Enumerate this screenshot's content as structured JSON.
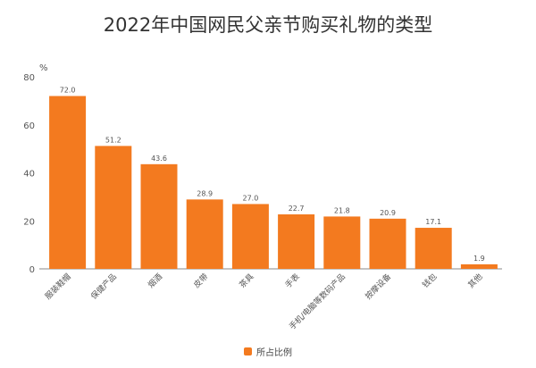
{
  "chart_data": {
    "type": "bar",
    "title": "2022年中国网民父亲节购买礼物的类型",
    "unit": "%",
    "categories": [
      "服装鞋帽",
      "保健产品",
      "烟酒",
      "皮带",
      "茶具",
      "手表",
      "手机/电脑等数码产品",
      "按摩设备",
      "钱包",
      "其他"
    ],
    "series": [
      {
        "name": "所占比例",
        "values": [
          72.0,
          51.2,
          43.6,
          28.9,
          27.0,
          22.7,
          21.8,
          20.9,
          17.1,
          1.9
        ],
        "value_labels": [
          "72.0",
          "51.2",
          "43.6",
          "28.9",
          "27.0",
          "22.7",
          "21.8",
          "20.9",
          "17.1",
          "1.9"
        ]
      }
    ],
    "yticks": [
      "0",
      "20",
      "40",
      "60",
      "80"
    ],
    "ylim": [
      0,
      80
    ],
    "grid": false,
    "legend": "bottom-center",
    "bar_color": "#F37A1F"
  }
}
